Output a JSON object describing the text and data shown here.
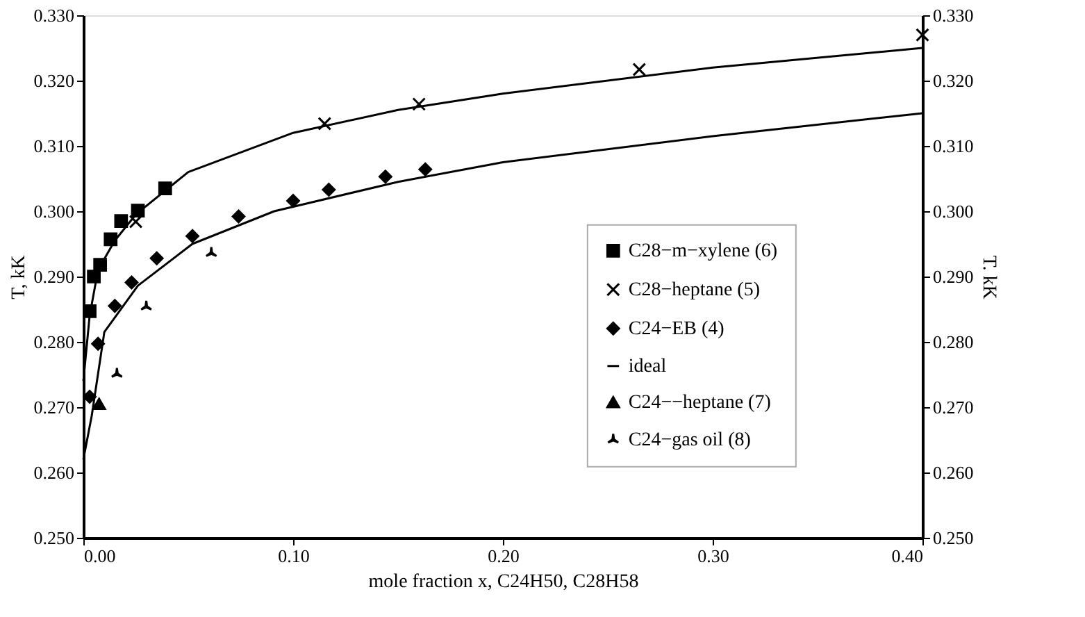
{
  "chart_data": {
    "type": "scatter",
    "xlabel": "mole fraction x, C24H50, C28H58",
    "ylabel": "T, kK",
    "y2label": "T. kK",
    "xlim": [
      0,
      0.4
    ],
    "xticks": [
      {
        "value": 0,
        "label": "0.00"
      },
      {
        "value": 0.1,
        "label": "0.10"
      },
      {
        "value": 0.2,
        "label": "0.20"
      },
      {
        "value": 0.3,
        "label": "0.30"
      },
      {
        "value": 0.4,
        "label": "0.40"
      }
    ],
    "ylim": [
      0.25,
      0.33
    ],
    "yticks": [
      {
        "value": 0.25,
        "label": "0.250"
      },
      {
        "value": 0.26,
        "label": "0.260"
      },
      {
        "value": 0.27,
        "label": "0.270"
      },
      {
        "value": 0.28,
        "label": "0.280"
      },
      {
        "value": 0.29,
        "label": "0.290"
      },
      {
        "value": 0.3,
        "label": "0.300"
      },
      {
        "value": 0.31,
        "label": "0.310"
      },
      {
        "value": 0.32,
        "label": "0.320"
      },
      {
        "value": 0.33,
        "label": "0.330"
      }
    ],
    "y2lim": [
      0.25,
      0.33
    ],
    "y2ticks": [
      {
        "value": 0.25,
        "label": "0.250"
      },
      {
        "value": 0.26,
        "label": "0.260"
      },
      {
        "value": 0.27,
        "label": "0.270"
      },
      {
        "value": 0.28,
        "label": "0.280"
      },
      {
        "value": 0.29,
        "label": "0.290"
      },
      {
        "value": 0.3,
        "label": "0.300"
      },
      {
        "value": 0.31,
        "label": "0.310"
      },
      {
        "value": 0.32,
        "label": "0.320"
      },
      {
        "value": 0.33,
        "label": "0.330"
      }
    ],
    "grid": false,
    "legend": "right",
    "series": [
      {
        "name": "C28−m−xylene (6)",
        "marker": "square",
        "color": "#000000",
        "x": [
          0.003,
          0.005,
          0.008,
          0.013,
          0.018,
          0.026,
          0.039
        ],
        "values": [
          0.2847,
          0.29,
          0.2918,
          0.2957,
          0.2985,
          0.3001,
          0.3035
        ]
      },
      {
        "name": "C28−heptane (5)",
        "marker": "cross",
        "color": "#000000",
        "x": [
          0.025,
          0.115,
          0.16,
          0.265,
          0.4
        ],
        "values": [
          0.2984,
          0.3134,
          0.3164,
          0.3217,
          0.327
        ]
      },
      {
        "name": "C24−EB (4)",
        "marker": "diamond",
        "color": "#000000",
        "x": [
          0.003,
          0.007,
          0.015,
          0.023,
          0.035,
          0.052,
          0.074,
          0.1,
          0.117,
          0.144,
          0.163
        ],
        "values": [
          0.2716,
          0.2797,
          0.2855,
          0.2891,
          0.2928,
          0.2962,
          0.2992,
          0.3016,
          0.3033,
          0.3053,
          0.3064
        ]
      },
      {
        "name": "ideal",
        "type": "line",
        "color": "#000000",
        "x": [
          0,
          0.003,
          0.007,
          0.015,
          0.025,
          0.05,
          0.1,
          0.15,
          0.2,
          0.3,
          0.4
        ],
        "values": [
          0.274,
          0.284,
          0.291,
          0.2955,
          0.2995,
          0.306,
          0.312,
          0.3155,
          0.318,
          0.322,
          0.325
        ]
      },
      {
        "type": "line",
        "axis": "y2",
        "color": "#000000",
        "x": [
          0,
          0.004,
          0.01,
          0.026,
          0.052,
          0.091,
          0.15,
          0.2,
          0.3,
          0.4
        ],
        "values": [
          0.262,
          0.2687,
          0.2815,
          0.2886,
          0.295,
          0.3,
          0.3045,
          0.3075,
          0.3115,
          0.315
        ]
      },
      {
        "name": "C24−−heptane (7)",
        "marker": "triangle",
        "color": "#000000",
        "x": [
          0.0075
        ],
        "values": [
          0.2705
        ]
      },
      {
        "name": "C24−gas oil (8)",
        "marker": "star",
        "color": "#000000",
        "x": [
          0.016,
          0.03,
          0.061
        ],
        "values": [
          0.2751,
          0.2854,
          0.2936
        ]
      }
    ]
  }
}
